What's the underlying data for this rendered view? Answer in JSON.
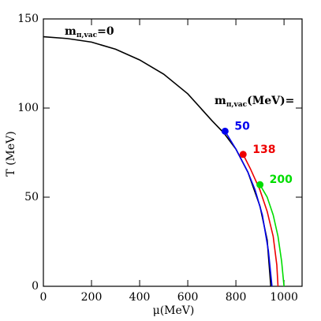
{
  "chart_data": {
    "type": "line",
    "xlabel": "μ(MeV)",
    "ylabel": "T (MeV)",
    "xlim": [
      0,
      1075
    ],
    "ylim": [
      0,
      150
    ],
    "xticks": [
      0,
      200,
      400,
      600,
      800,
      1000
    ],
    "yticks": [
      0,
      50,
      100,
      150
    ],
    "annotations": [
      {
        "text": "m",
        "sub": "π,vac",
        "suffix": "=0"
      },
      {
        "text": "m",
        "sub": "π,vac",
        "suffix": "(MeV)="
      }
    ],
    "series": [
      {
        "color": "#000000",
        "x": [
          0,
          100,
          200,
          300,
          400,
          500,
          600,
          700,
          750,
          800,
          850,
          900,
          930,
          945
        ],
        "values": [
          140,
          139,
          137,
          133,
          127,
          119,
          108,
          93,
          86,
          77,
          64,
          45,
          26,
          0
        ]
      },
      {
        "name": "50",
        "color": "#0000ee",
        "x": [
          755,
          800,
          850,
          880,
          910,
          935,
          950
        ],
        "values": [
          87,
          77,
          64,
          54,
          40,
          20,
          0
        ]
      },
      {
        "name": "138",
        "color": "#ee0000",
        "x": [
          830,
          860,
          900,
          930,
          955,
          970,
          975
        ],
        "values": [
          74,
          66,
          54,
          42,
          28,
          12,
          0
        ]
      },
      {
        "name": "200",
        "color": "#00dd00",
        "x": [
          900,
          930,
          955,
          975,
          990,
          1000
        ],
        "values": [
          57,
          50,
          40,
          28,
          14,
          0
        ]
      }
    ]
  }
}
